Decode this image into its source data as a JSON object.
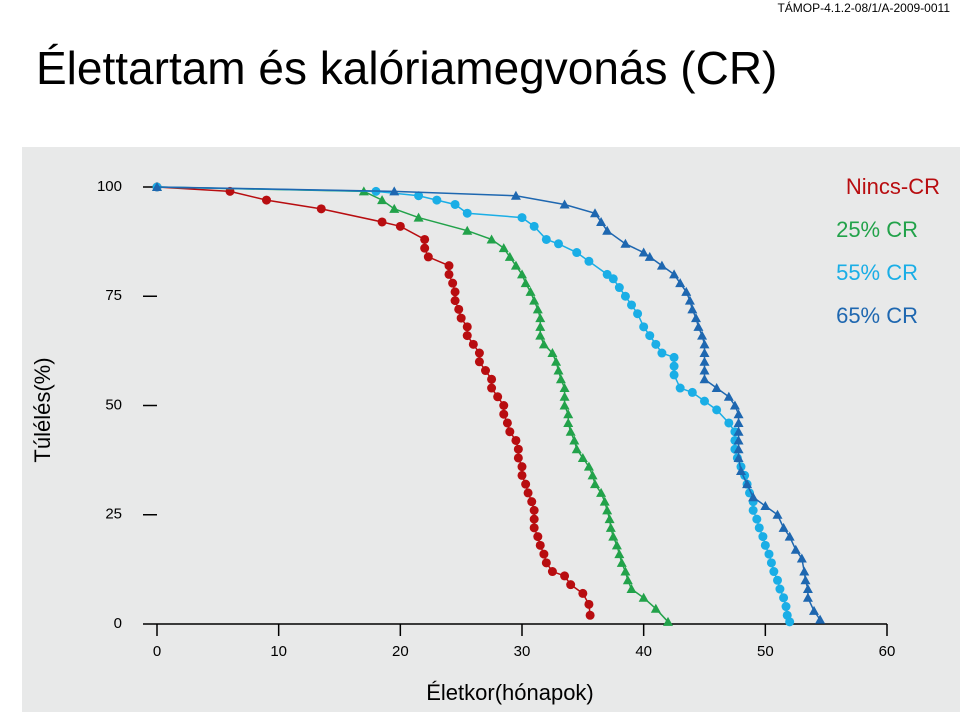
{
  "header": {
    "code": "TÁMOP-4.1.2-08/1/A-2009-0011",
    "title": "Élettartam és kalóriamegvonás (CR)"
  },
  "chart_data": {
    "type": "line",
    "x_label": "Életkor(hónapok)",
    "y_label": "Túlélés(%)",
    "xlim": [
      0,
      60
    ],
    "xticks": [
      0,
      10,
      20,
      30,
      40,
      50,
      60
    ],
    "ylim": [
      0,
      100
    ],
    "yticks": [
      0,
      25,
      50,
      75,
      100
    ],
    "legend": "upper right",
    "series": [
      {
        "name": "Nincs-CR",
        "color": "#b80d10",
        "marker": "circle",
        "x": [
          0,
          6,
          9,
          13.5,
          18.5,
          20,
          22,
          22,
          22.3,
          24,
          24,
          24.3,
          24.5,
          24.5,
          24.8,
          25,
          25.5,
          25.5,
          26,
          26.5,
          26.5,
          27,
          27.5,
          27.5,
          28,
          28.5,
          28.5,
          28.8,
          29,
          29.5,
          29.7,
          29.7,
          30,
          30,
          30.3,
          30.5,
          30.8,
          31,
          31,
          31,
          31.3,
          31.5,
          31.8,
          32,
          32.5,
          33.5,
          34,
          35,
          35.5,
          35.6
        ],
        "values": [
          100,
          99,
          97,
          95,
          92,
          91,
          88,
          86,
          84,
          82,
          80,
          78,
          76,
          74,
          72,
          70,
          68,
          66,
          64,
          62,
          60,
          58,
          56,
          54,
          52,
          50,
          48,
          46,
          44,
          42,
          40,
          38,
          36,
          34,
          32,
          30,
          28,
          26,
          24,
          22,
          20,
          18,
          16,
          14,
          12,
          11,
          9,
          7,
          4.5,
          2
        ]
      },
      {
        "name": "25% CR",
        "color": "#22a24a",
        "marker": "triangle",
        "x": [
          0,
          17,
          18.5,
          19.5,
          21.5,
          25.5,
          27.5,
          28.5,
          29,
          29.5,
          30,
          30.3,
          30.7,
          31,
          31.3,
          31.5,
          31.5,
          31.5,
          31.8,
          32.5,
          32.8,
          33,
          33.2,
          33.5,
          33.5,
          33.5,
          33.8,
          33.8,
          34,
          34.3,
          34.5,
          35,
          35.5,
          35.8,
          36,
          36.5,
          36.8,
          37,
          37.2,
          37.3,
          37.5,
          37.8,
          38,
          38.2,
          38.5,
          38.7,
          39,
          40,
          41,
          42
        ],
        "values": [
          100,
          99,
          97,
          95,
          93,
          90,
          88,
          86,
          84,
          82,
          80,
          78,
          76,
          74,
          72,
          70,
          68,
          66,
          64,
          62,
          60,
          58,
          56,
          54,
          52,
          50,
          48,
          46,
          44,
          42,
          40,
          38,
          36,
          34,
          32,
          30,
          28,
          26,
          24,
          22,
          20,
          18,
          16,
          14,
          12,
          10,
          8,
          6,
          3.5,
          0.5
        ]
      },
      {
        "name": "55% CR",
        "color": "#1aaee6",
        "marker": "circle",
        "x": [
          0,
          18,
          21.5,
          23,
          24.5,
          25.5,
          30,
          31,
          32,
          33,
          34.5,
          35.5,
          37,
          37.5,
          38,
          38.5,
          39,
          39.5,
          40,
          40.5,
          41,
          41.5,
          42.5,
          42.5,
          42.5,
          43,
          44,
          45,
          46,
          47,
          47.5,
          47.5,
          47.5,
          47.7,
          48,
          48.3,
          48.5,
          48.7,
          49,
          49,
          49.3,
          49.5,
          49.8,
          50,
          50.3,
          50.5,
          50.7,
          51,
          51.2,
          51.5,
          51.7,
          51.8,
          52
        ],
        "values": [
          100,
          99,
          98,
          97,
          96,
          94,
          93,
          91,
          88,
          87,
          85,
          83,
          80,
          79,
          77,
          75,
          73,
          71,
          68,
          66,
          64,
          62,
          61,
          59,
          57,
          54,
          53,
          51,
          49,
          46,
          44,
          42,
          40,
          38,
          36,
          34,
          32,
          30,
          28,
          26,
          24,
          22,
          20,
          18,
          16,
          14,
          12,
          10,
          8,
          6,
          4,
          2,
          0.5
        ]
      },
      {
        "name": "65% CR",
        "color": "#1e67b0",
        "marker": "triangle",
        "x": [
          0,
          19.5,
          29.5,
          33.5,
          36,
          36.5,
          37,
          38.5,
          40,
          40.5,
          41.5,
          42.5,
          43,
          43.5,
          43.8,
          44,
          44.3,
          44.5,
          44.8,
          45,
          45,
          45,
          45,
          45,
          46,
          47,
          47.5,
          47.8,
          47.8,
          47.8,
          47.8,
          47.8,
          47.8,
          48,
          48.5,
          49,
          50,
          51,
          51.5,
          52,
          52.5,
          53,
          53.2,
          53.3,
          53.5,
          53.5,
          54,
          54.5
        ],
        "values": [
          100,
          99,
          98,
          96,
          94,
          92,
          90,
          87,
          85,
          84,
          82,
          80,
          78,
          76,
          74,
          72,
          70,
          68,
          66,
          64,
          62,
          60,
          58,
          56,
          54,
          52,
          50,
          48,
          46,
          44,
          42,
          40,
          38,
          35,
          32,
          29,
          27,
          25,
          22,
          20,
          17,
          15,
          12,
          10,
          8,
          6,
          3,
          1
        ]
      }
    ]
  }
}
